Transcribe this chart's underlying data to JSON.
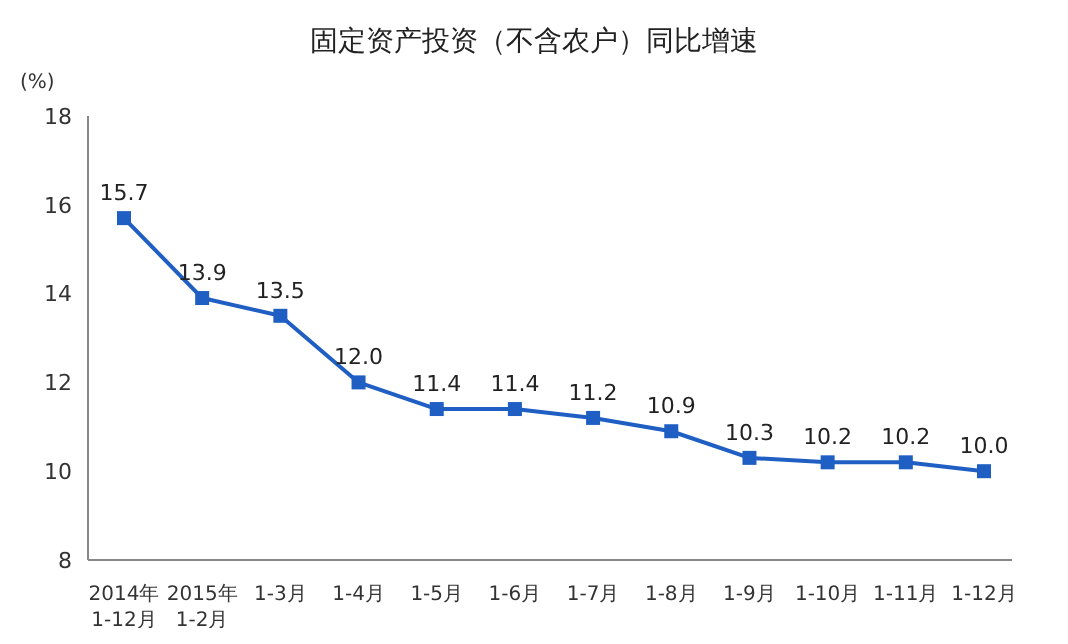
{
  "chart_data": {
    "type": "line",
    "title": "固定资产投资（不含农户）同比增速",
    "ylabel": "(%)",
    "categories": [
      "2014年\n1-12月",
      "2015年\n1-2月",
      "1-3月",
      "1-4月",
      "1-5月",
      "1-6月",
      "1-7月",
      "1-8月",
      "1-9月",
      "1-10月",
      "1-11月",
      "1-12月"
    ],
    "series": [
      {
        "color": "#1f5fc4",
        "values": [
          15.7,
          13.9,
          13.5,
          12.0,
          11.4,
          11.4,
          11.2,
          10.9,
          10.3,
          10.2,
          10.2,
          10.0
        ],
        "value_labels": [
          "15.7",
          "13.9",
          "13.5",
          "12.0",
          "11.4",
          "11.4",
          "11.2",
          "10.9",
          "10.3",
          "10.2",
          "10.2",
          "10.0"
        ]
      }
    ],
    "ylim": [
      8,
      18
    ],
    "yticks": [
      8,
      10,
      12,
      14,
      16,
      18
    ],
    "marker": "square",
    "grid": false
  }
}
